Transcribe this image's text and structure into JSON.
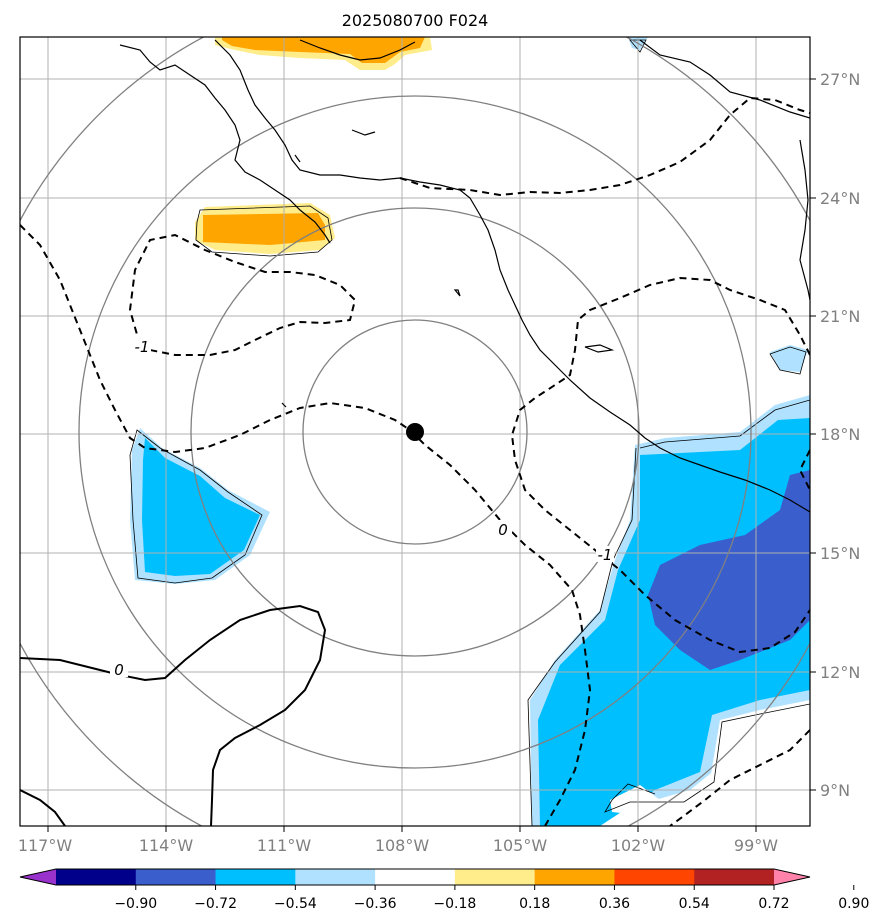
{
  "title": "2025080700 F024",
  "map": {
    "lon_range": [
      -117.3,
      -97.6
    ],
    "lat_range": [
      8.1,
      28.0
    ],
    "x_ticks": [
      "117°W",
      "114°W",
      "111°W",
      "108°W",
      "105°W",
      "102°W",
      "99°W"
    ],
    "y_ticks": [
      "27°N",
      "24°N",
      "21°N",
      "18°N",
      "15°N",
      "12°N",
      "9°N"
    ],
    "center_marker": {
      "lon": -107.7,
      "lat": 18.1
    },
    "range_rings": 4,
    "contour_labels": [
      "-1",
      "0",
      "0",
      "-1"
    ]
  },
  "colorbar": {
    "tick_labels": [
      "−0.90",
      "−0.72",
      "−0.54",
      "−0.36",
      "−0.18",
      "0.18",
      "0.36",
      "0.54",
      "0.72",
      "0.90"
    ],
    "colors": [
      "#9932cc",
      "#00008b",
      "#3a5fcd",
      "#00bfff",
      "#b0e2ff",
      "#ffffff",
      "#ffec8b",
      "#ffa500",
      "#ff4500",
      "#b22222",
      "#ff82ab"
    ]
  },
  "colors": {
    "gridline": "#b0b0b0",
    "ring": "#808080",
    "coast": "#000000"
  }
}
